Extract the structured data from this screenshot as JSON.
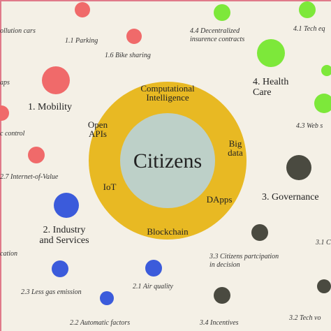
{
  "center": {
    "title": "Citizens"
  },
  "ring": {
    "labels": [
      [
        "Computational",
        "Intelligence"
      ],
      [
        "Open",
        "APIs"
      ],
      [
        "Big",
        "data"
      ],
      [
        "IoT"
      ],
      [
        "DApps"
      ],
      [
        "Blockchain"
      ]
    ]
  },
  "domains": [
    [
      "1. Mobility"
    ],
    [
      "4. Health",
      "Care"
    ],
    [
      "3. Governance"
    ],
    [
      "2. Industry",
      "and Services"
    ]
  ],
  "items": [
    [
      "ollution cars"
    ],
    [
      "1.1 Parking"
    ],
    [
      "1.6 Bike sharing"
    ],
    [
      "4.4 Decentralized",
      "insurence contracts"
    ],
    [
      "4.1 Tech eq"
    ],
    [
      "aps"
    ],
    [
      "c control"
    ],
    [
      "4.3 Web s"
    ],
    [
      "2.7 Internet-of-Value"
    ],
    [
      "cation"
    ],
    [
      "3.1 C"
    ],
    [
      "3.3 Citizens partcipation",
      "in decision"
    ],
    [
      "2.3 Less gas emission"
    ],
    [
      "2.1 Air quality"
    ],
    [
      "3.4 Incentives"
    ],
    [
      "3.2 Tech vo"
    ],
    [
      "2.2 Automatic factors"
    ]
  ]
}
